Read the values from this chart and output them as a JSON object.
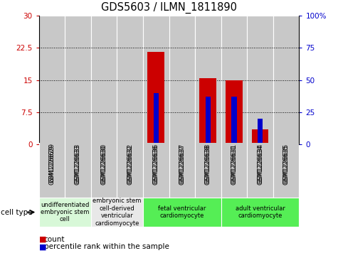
{
  "title": "GDS5603 / ILMN_1811890",
  "samples": [
    "GSM1226629",
    "GSM1226633",
    "GSM1226630",
    "GSM1226632",
    "GSM1226636",
    "GSM1226637",
    "GSM1226638",
    "GSM1226631",
    "GSM1226634",
    "GSM1226635"
  ],
  "count_values": [
    0,
    0,
    0,
    0,
    21.5,
    0,
    15.5,
    15.0,
    3.5,
    0
  ],
  "percentile_values": [
    0,
    0,
    0,
    0,
    40,
    0,
    37,
    37,
    20,
    0
  ],
  "ylim_left": [
    0,
    30
  ],
  "ylim_right": [
    0,
    100
  ],
  "yticks_left": [
    0,
    7.5,
    15,
    22.5,
    30
  ],
  "yticks_right": [
    0,
    25,
    50,
    75,
    100
  ],
  "cell_type_groups": [
    {
      "label": "undifferentiated\nembryonic stem\ncell",
      "start": 0,
      "end": 2,
      "color": "#d8f8d8"
    },
    {
      "label": "embryonic stem\ncell-derived\nventricular\ncardiomyocyte",
      "start": 2,
      "end": 4,
      "color": "#e8e8e8"
    },
    {
      "label": "fetal ventricular\ncardiomyocyte",
      "start": 4,
      "end": 7,
      "color": "#55ee55"
    },
    {
      "label": "adult ventricular\ncardiomyocyte",
      "start": 7,
      "end": 10,
      "color": "#55ee55"
    }
  ],
  "count_color": "#cc0000",
  "percentile_color": "#0000cc",
  "bar_bg_color": "#c8c8c8",
  "bar_width": 0.65,
  "percentile_bar_width": 0.2,
  "legend_count_label": "count",
  "legend_percentile_label": "percentile rank within the sample",
  "cell_type_label": "cell type",
  "title_fontsize": 10.5,
  "tick_fontsize": 7.5,
  "sample_fontsize": 6.0
}
